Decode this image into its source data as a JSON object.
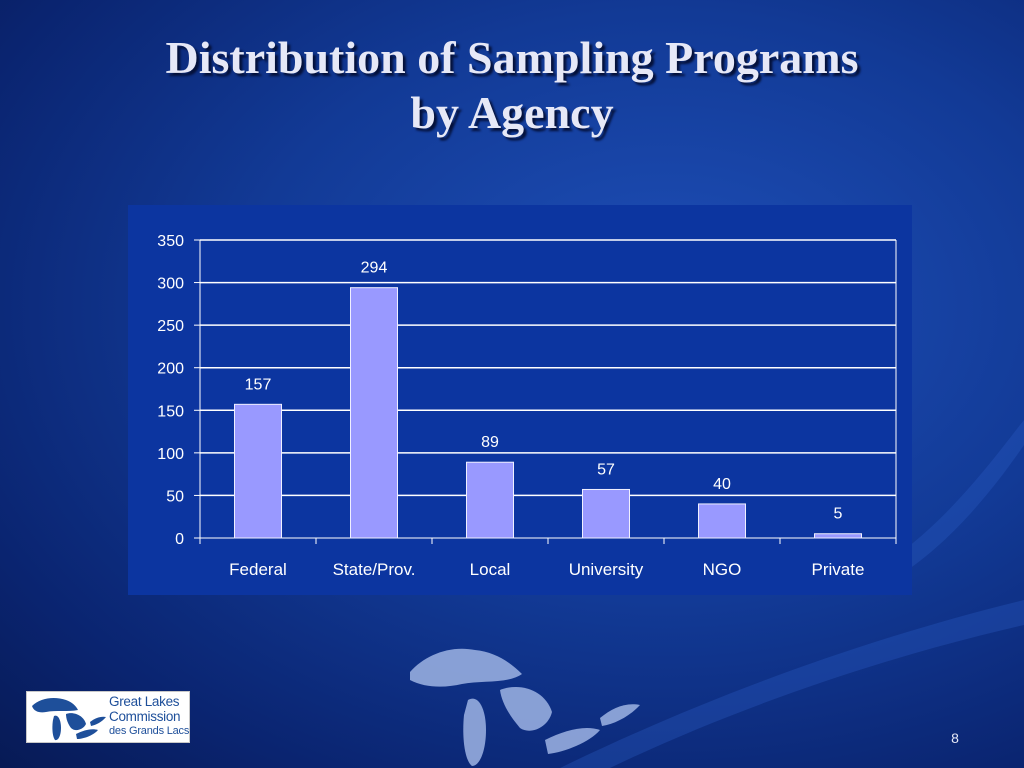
{
  "slide": {
    "title_line1": "Distribution of Sampling Programs",
    "title_line2": "by Agency",
    "slide_number": "8",
    "logo": {
      "line1": "Great Lakes",
      "line2": "Commission",
      "line3": "des Grands Lacs"
    }
  },
  "colors": {
    "bar": "#9999ff",
    "bar_border": "#f0f0ff",
    "text": "#ffffff",
    "grid": "#ffffff",
    "plot_background": "#0c35a0"
  },
  "chart_data": {
    "type": "bar",
    "title": "",
    "xlabel": "",
    "ylabel": "",
    "categories": [
      "Federal",
      "State/Prov.",
      "Local",
      "University",
      "NGO",
      "Private"
    ],
    "values": [
      157,
      294,
      89,
      57,
      40,
      5
    ],
    "data_labels": [
      "157",
      "294",
      "89",
      "57",
      "40",
      "5"
    ],
    "ylim": [
      0,
      350
    ],
    "yticks": [
      0,
      50,
      100,
      150,
      200,
      250,
      300,
      350
    ],
    "ytick_labels": [
      "0",
      "50",
      "100",
      "150",
      "200",
      "250",
      "300",
      "350"
    ],
    "grid": true,
    "legend": "none"
  }
}
